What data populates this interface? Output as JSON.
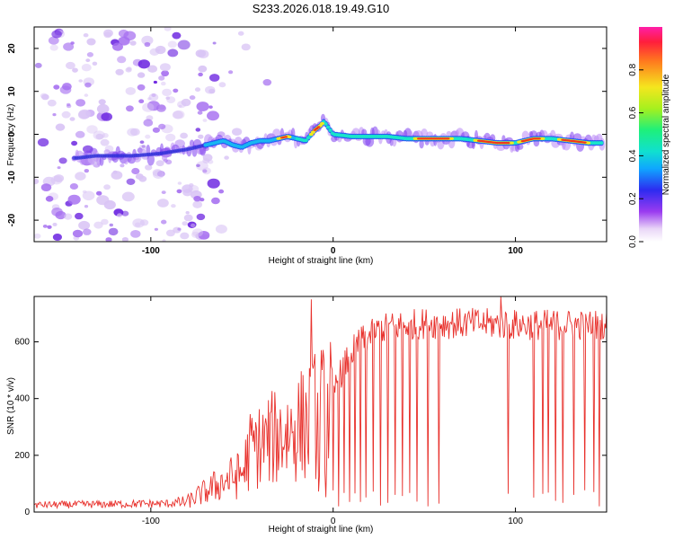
{
  "title": "S233.2026.018.19.49.G10",
  "colors": {
    "snr_line": "#e8312c",
    "axes": "#000000"
  },
  "chart_data": [
    {
      "type": "heatmap",
      "title": "S233.2026.018.19.49.G10",
      "xlabel": "Height of straight line (km)",
      "ylabel": "Frequency (Hz)",
      "xlim": [
        -164,
        150
      ],
      "ylim": [
        -25,
        25
      ],
      "x_ticks": [
        -100,
        0,
        100
      ],
      "x_tick_labels": [
        "-100",
        "0",
        "100"
      ],
      "y_ticks": [
        -20,
        -10,
        0,
        10,
        20
      ],
      "y_tick_labels": [
        "-20",
        "-10",
        "0",
        "10",
        "20"
      ],
      "ridge": {
        "x": [
          -140,
          -130,
          -110,
          -95,
          -80,
          -70,
          -60,
          -55,
          -50,
          -45,
          -40,
          -35,
          -30,
          -25,
          -20,
          -15,
          -10,
          -7,
          -5,
          0,
          10,
          20,
          30,
          40,
          50,
          60,
          70,
          80,
          90,
          95,
          100,
          110,
          120,
          130,
          140,
          148
        ],
        "y": [
          -5.5,
          -5,
          -5,
          -4.5,
          -3.5,
          -2.5,
          -1.5,
          -2.5,
          -3,
          -2,
          -1.5,
          -1.5,
          -1,
          -0.5,
          -1,
          -1.5,
          1,
          2,
          3,
          0,
          -0.5,
          -0.5,
          -0.5,
          -1,
          -1,
          -1,
          -1,
          -1.5,
          -2,
          -2,
          -2,
          -1,
          -1,
          -1.5,
          -2,
          -2
        ]
      },
      "colorbar": {
        "label": "Normalized spectral amplitude",
        "range": [
          0.0,
          1.0
        ],
        "ticks": [
          0.0,
          0.2,
          0.4,
          0.6,
          0.8
        ],
        "tick_labels": [
          "0.0",
          "0.2",
          "0.4",
          "0.6",
          "0.8"
        ]
      }
    },
    {
      "type": "line",
      "xlabel": "Height of straight line (km)",
      "ylabel": "SNR (10 * v/v)",
      "xlim": [
        -164,
        150
      ],
      "ylim": [
        0,
        760
      ],
      "x_ticks": [
        -100,
        0,
        100
      ],
      "x_tick_labels": [
        "-100",
        "0",
        "100"
      ],
      "y_ticks": [
        0,
        200,
        400,
        600
      ],
      "y_tick_labels": [
        "0",
        "200",
        "400",
        "600"
      ],
      "envelope": {
        "x": [
          -164,
          -90,
          -80,
          -70,
          -60,
          -50,
          -45,
          -40,
          -35,
          -30,
          -25,
          -20,
          -15,
          -10,
          -5,
          0,
          5,
          10,
          15,
          20,
          25,
          30,
          40,
          50,
          60,
          80,
          100,
          120,
          150
        ],
        "y": [
          25,
          30,
          40,
          80,
          120,
          150,
          250,
          260,
          280,
          300,
          310,
          330,
          350,
          380,
          400,
          420,
          500,
          560,
          600,
          620,
          640,
          650,
          660,
          665,
          665,
          665,
          660,
          660,
          660
        ]
      },
      "spikes": [
        {
          "x": -12,
          "y": 750
        },
        {
          "x": 92,
          "y": 765
        }
      ],
      "dropouts_x": [
        -12,
        -8,
        -4,
        0,
        3,
        6,
        9,
        12,
        15,
        18,
        22,
        26,
        30,
        34,
        38,
        42,
        46,
        52,
        58,
        96,
        110,
        115,
        118,
        122,
        126,
        132,
        138,
        143,
        146
      ]
    }
  ]
}
